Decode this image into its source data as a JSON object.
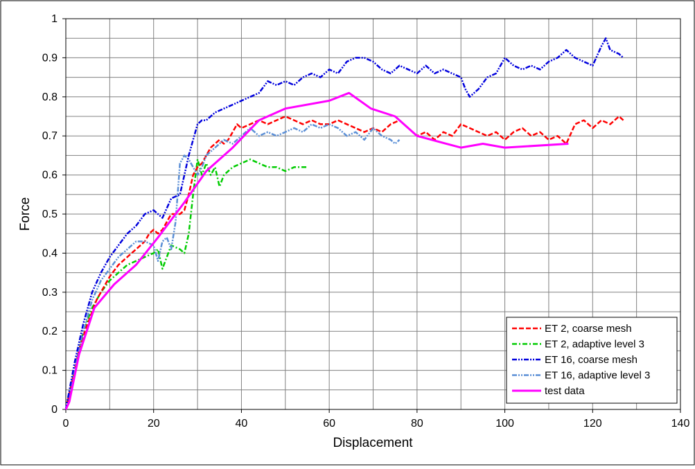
{
  "chart_data": {
    "type": "line",
    "xlabel": "Displacement",
    "ylabel": "Force",
    "xlim": [
      0,
      140
    ],
    "ylim": [
      0,
      1
    ],
    "x_ticks": [
      "0",
      "20",
      "40",
      "60",
      "80",
      "100",
      "120",
      "140"
    ],
    "y_ticks": [
      "0",
      "0.1",
      "0.2",
      "0.3",
      "0.4",
      "0.5",
      "0.6",
      "0.7",
      "0.8",
      "0.9",
      "1"
    ],
    "grid": true,
    "legend_position": "bottom-right",
    "series": [
      {
        "name": "ET 2, coarse mesh",
        "color": "#ff0000",
        "dash": "dashed",
        "x": [
          0,
          1,
          2,
          3,
          4,
          5,
          6,
          7,
          8,
          9,
          10,
          12,
          14,
          16,
          18,
          19,
          20,
          21,
          22,
          23,
          24,
          25,
          26,
          27,
          28,
          29,
          30,
          31,
          32,
          33,
          34,
          35,
          36,
          37,
          38,
          39,
          40,
          42,
          44,
          46,
          48,
          50,
          52,
          54,
          56,
          58,
          60,
          62,
          64,
          66,
          68,
          70,
          72,
          74,
          76,
          78,
          80,
          82,
          84,
          86,
          88,
          90,
          92,
          94,
          96,
          98,
          100,
          102,
          104,
          106,
          108,
          110,
          112,
          114,
          116,
          118,
          120,
          122,
          124,
          126,
          127
        ],
        "y": [
          0,
          0.05,
          0.1,
          0.15,
          0.19,
          0.22,
          0.25,
          0.28,
          0.3,
          0.32,
          0.34,
          0.37,
          0.39,
          0.41,
          0.43,
          0.45,
          0.46,
          0.45,
          0.46,
          0.48,
          0.5,
          0.5,
          0.5,
          0.51,
          0.55,
          0.6,
          0.62,
          0.63,
          0.65,
          0.67,
          0.68,
          0.69,
          0.68,
          0.69,
          0.71,
          0.73,
          0.72,
          0.73,
          0.74,
          0.73,
          0.74,
          0.75,
          0.74,
          0.73,
          0.74,
          0.73,
          0.73,
          0.74,
          0.73,
          0.72,
          0.71,
          0.72,
          0.71,
          0.73,
          0.74,
          0.72,
          0.7,
          0.71,
          0.69,
          0.71,
          0.7,
          0.73,
          0.72,
          0.71,
          0.7,
          0.71,
          0.69,
          0.71,
          0.72,
          0.7,
          0.71,
          0.69,
          0.7,
          0.68,
          0.73,
          0.74,
          0.72,
          0.74,
          0.73,
          0.75,
          0.74
        ]
      },
      {
        "name": "ET 2, adaptive level 3",
        "color": "#00cc00",
        "dash": "dashdot",
        "x": [
          0,
          1,
          2,
          3,
          4,
          5,
          6,
          8,
          10,
          12,
          14,
          16,
          18,
          20,
          21,
          22,
          24,
          26,
          27,
          28,
          29,
          30,
          31,
          32,
          33,
          34,
          35,
          36,
          38,
          40,
          42,
          44,
          46,
          48,
          50,
          52,
          54,
          55
        ],
        "y": [
          0,
          0.05,
          0.1,
          0.15,
          0.2,
          0.23,
          0.26,
          0.3,
          0.33,
          0.35,
          0.37,
          0.38,
          0.39,
          0.4,
          0.41,
          0.36,
          0.42,
          0.41,
          0.4,
          0.45,
          0.55,
          0.64,
          0.6,
          0.63,
          0.6,
          0.62,
          0.57,
          0.6,
          0.62,
          0.63,
          0.64,
          0.63,
          0.62,
          0.62,
          0.61,
          0.62,
          0.62,
          0.62
        ]
      },
      {
        "name": "ET 16, coarse mesh",
        "color": "#0000dd",
        "dash": "dashdotdot",
        "x": [
          0,
          1,
          2,
          3,
          4,
          5,
          6,
          8,
          10,
          12,
          14,
          16,
          18,
          20,
          21,
          22,
          24,
          26,
          27,
          28,
          29,
          30,
          31,
          32,
          34,
          36,
          38,
          40,
          42,
          44,
          46,
          48,
          50,
          52,
          54,
          56,
          58,
          60,
          62,
          64,
          66,
          68,
          70,
          72,
          74,
          76,
          78,
          80,
          82,
          84,
          86,
          88,
          90,
          91,
          92,
          94,
          96,
          98,
          100,
          102,
          104,
          106,
          108,
          110,
          112,
          114,
          116,
          118,
          120,
          122,
          123,
          124,
          126,
          127
        ],
        "y": [
          0,
          0.06,
          0.12,
          0.17,
          0.22,
          0.26,
          0.3,
          0.35,
          0.39,
          0.42,
          0.45,
          0.47,
          0.5,
          0.51,
          0.5,
          0.49,
          0.54,
          0.55,
          0.6,
          0.65,
          0.69,
          0.73,
          0.74,
          0.74,
          0.76,
          0.77,
          0.78,
          0.79,
          0.8,
          0.81,
          0.84,
          0.83,
          0.84,
          0.83,
          0.85,
          0.86,
          0.85,
          0.87,
          0.86,
          0.89,
          0.9,
          0.9,
          0.89,
          0.87,
          0.86,
          0.88,
          0.87,
          0.86,
          0.88,
          0.86,
          0.87,
          0.86,
          0.85,
          0.82,
          0.8,
          0.82,
          0.85,
          0.86,
          0.9,
          0.88,
          0.87,
          0.88,
          0.87,
          0.89,
          0.9,
          0.92,
          0.9,
          0.89,
          0.88,
          0.93,
          0.95,
          0.92,
          0.91,
          0.9
        ]
      },
      {
        "name": "ET 16, adaptive level 3",
        "color": "#5b8fd6",
        "dash": "dashdotdot",
        "x": [
          0,
          1,
          2,
          3,
          4,
          5,
          6,
          8,
          10,
          12,
          14,
          16,
          18,
          20,
          21,
          22,
          23,
          24,
          25,
          26,
          27,
          28,
          29,
          30,
          31,
          32,
          34,
          36,
          38,
          40,
          42,
          44,
          46,
          48,
          50,
          52,
          54,
          56,
          58,
          60,
          62,
          64,
          66,
          68,
          70,
          72,
          74,
          75,
          76
        ],
        "y": [
          0,
          0.05,
          0.1,
          0.15,
          0.2,
          0.24,
          0.28,
          0.33,
          0.36,
          0.39,
          0.41,
          0.43,
          0.43,
          0.42,
          0.38,
          0.43,
          0.44,
          0.41,
          0.48,
          0.63,
          0.65,
          0.64,
          0.62,
          0.6,
          0.62,
          0.65,
          0.67,
          0.69,
          0.68,
          0.7,
          0.72,
          0.7,
          0.71,
          0.7,
          0.71,
          0.72,
          0.71,
          0.73,
          0.72,
          0.73,
          0.72,
          0.7,
          0.71,
          0.69,
          0.72,
          0.7,
          0.69,
          0.68,
          0.69
        ]
      },
      {
        "name": "test data",
        "color": "#ff00ff",
        "dash": "solid",
        "x": [
          0,
          0.8,
          3,
          6.5,
          11,
          16,
          21,
          27,
          32,
          38,
          44,
          50,
          60,
          64.5,
          69.5,
          75,
          80,
          90,
          95,
          100,
          114.5
        ],
        "y": [
          0,
          0.02,
          0.14,
          0.26,
          0.32,
          0.37,
          0.44,
          0.53,
          0.61,
          0.67,
          0.74,
          0.77,
          0.79,
          0.81,
          0.77,
          0.75,
          0.7,
          0.67,
          0.68,
          0.67,
          0.68
        ]
      }
    ]
  }
}
